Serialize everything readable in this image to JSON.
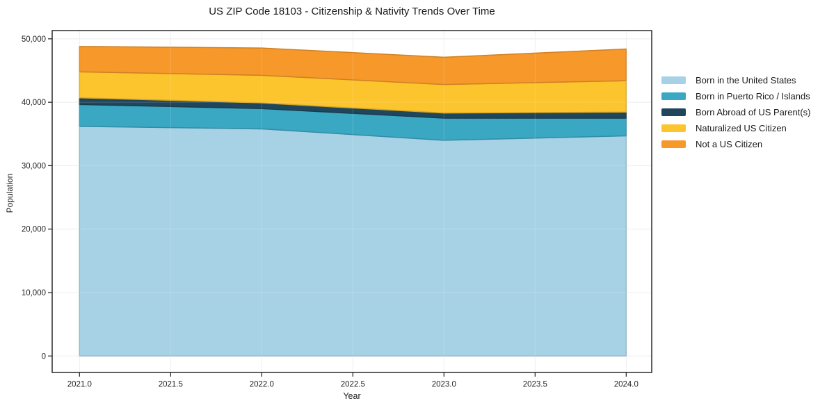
{
  "chart_data": {
    "type": "area",
    "stacked": true,
    "title": "US ZIP Code 18103 - Citizenship & Nativity Trends Over Time",
    "xlabel": "Year",
    "ylabel": "Population",
    "x": [
      2021,
      2022,
      2023,
      2024
    ],
    "series": [
      {
        "name": "Born in the United States",
        "color": "#a7d2e6",
        "values": [
          36200,
          35800,
          34000,
          34700
        ]
      },
      {
        "name": "Born in Puerto Rico / Islands",
        "color": "#3aa8c3",
        "values": [
          3450,
          3200,
          3500,
          2800
        ]
      },
      {
        "name": "Born Abroad of US Parent(s)",
        "color": "#20465c",
        "values": [
          1050,
          900,
          800,
          950
        ]
      },
      {
        "name": "Naturalized US Citizen",
        "color": "#fcc42d",
        "values": [
          4100,
          4350,
          4500,
          4950
        ]
      },
      {
        "name": "Not a US Citizen",
        "color": "#f7982b",
        "values": [
          4000,
          4300,
          4300,
          5000
        ]
      }
    ],
    "xlim": [
      2020.85,
      2024.14
    ],
    "ylim": [
      -2600,
      51300
    ],
    "xticks": {
      "values": [
        2021.0,
        2021.5,
        2022.0,
        2022.5,
        2023.0,
        2023.5,
        2024.0
      ],
      "labels": [
        "2021.0",
        "2021.5",
        "2022.0",
        "2022.5",
        "2023.0",
        "2023.5",
        "2024.0"
      ]
    },
    "yticks": {
      "values": [
        0,
        10000,
        20000,
        30000,
        40000,
        50000
      ],
      "labels": [
        "0",
        "10,000",
        "20,000",
        "30,000",
        "40,000",
        "50,000"
      ]
    },
    "grid": true,
    "legend_position": "right-outside",
    "colors": {
      "frame": "#1c1c1c",
      "grid": "#ececec",
      "tick_text": "#262626"
    }
  }
}
